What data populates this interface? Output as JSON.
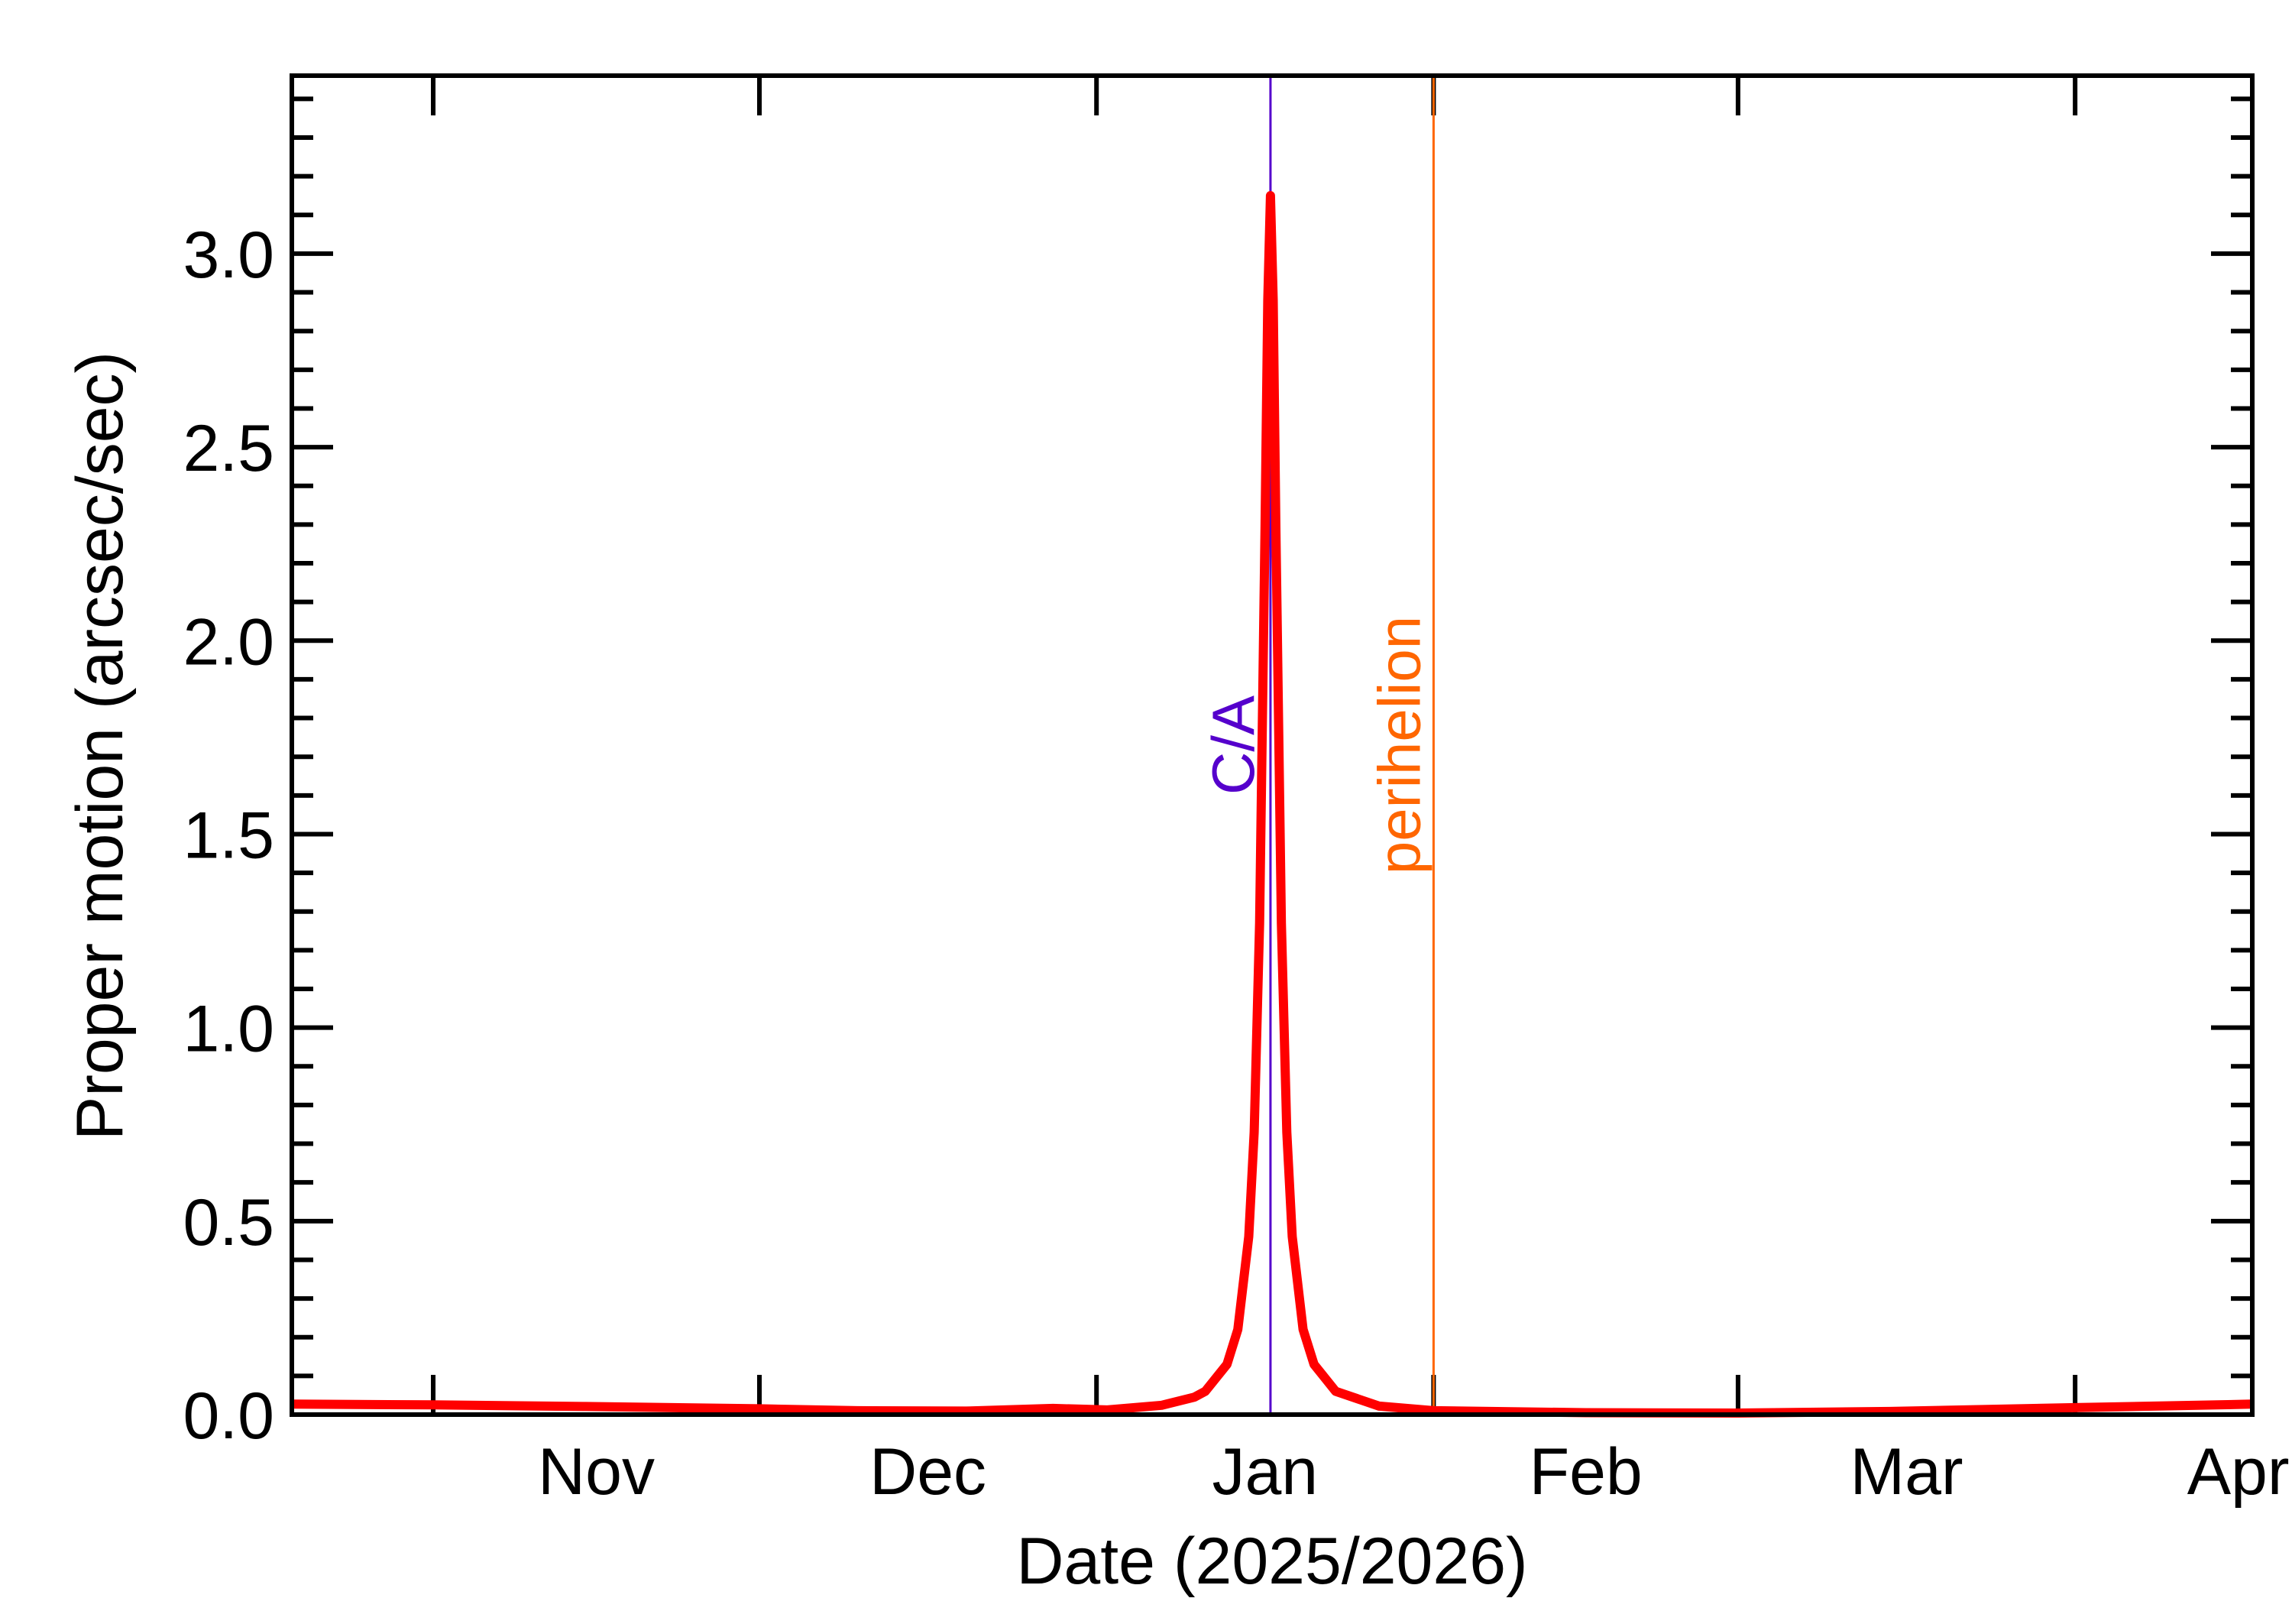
{
  "chart_data": {
    "type": "line",
    "title": "",
    "xlabel": "Date (2025/2026)",
    "ylabel": "Proper motion (arcsec/sec)",
    "xlim": [
      "2025-10-19T00:00",
      "2026-04-17T07:00"
    ],
    "ylim": [
      0,
      3.46
    ],
    "grid": false,
    "x_ticks": [
      {
        "date": "2025-11-01",
        "label": "Nov"
      },
      {
        "date": "2025-12-01",
        "label": "Dec"
      },
      {
        "date": "2026-01-01",
        "label": "Jan"
      },
      {
        "date": "2026-02-01",
        "label": "Feb"
      },
      {
        "date": "2026-03-01",
        "label": "Mar"
      },
      {
        "date": "2026-04-01",
        "label": "Apr"
      }
    ],
    "y_ticks": [
      {
        "value": 0.0,
        "label": "0.0"
      },
      {
        "value": 0.5,
        "label": "0.5"
      },
      {
        "value": 1.0,
        "label": "1.0"
      },
      {
        "value": 1.5,
        "label": "1.5"
      },
      {
        "value": 2.0,
        "label": "2.0"
      },
      {
        "value": 2.5,
        "label": "2.5"
      },
      {
        "value": 3.0,
        "label": "3.0"
      }
    ],
    "series": [
      {
        "color": "#ff0000",
        "points": [
          [
            "2025-10-19T00:00",
            0.027
          ],
          [
            "2025-11-01T00:00",
            0.025
          ],
          [
            "2025-11-15T00:00",
            0.021
          ],
          [
            "2025-12-01T00:00",
            0.015
          ],
          [
            "2025-12-10T00:00",
            0.01
          ],
          [
            "2025-12-20T00:00",
            0.009
          ],
          [
            "2025-12-28T00:00",
            0.016
          ],
          [
            "2026-01-02T00:00",
            0.012
          ],
          [
            "2026-01-07T00:00",
            0.024
          ],
          [
            "2026-01-10T00:00",
            0.045
          ],
          [
            "2026-01-11T00:00",
            0.06
          ],
          [
            "2026-01-13T00:00",
            0.13
          ],
          [
            "2026-01-14T00:00",
            0.22
          ],
          [
            "2026-01-15T00:00",
            0.46
          ],
          [
            "2026-01-15T12:00",
            0.73
          ],
          [
            "2026-01-16T00:00",
            1.27
          ],
          [
            "2026-01-16T12:00",
            2.29
          ],
          [
            "2026-01-16T18:00",
            2.88
          ],
          [
            "2026-01-17T00:00",
            3.15
          ],
          [
            "2026-01-17T06:00",
            2.88
          ],
          [
            "2026-01-17T12:00",
            2.29
          ],
          [
            "2026-01-18T00:00",
            1.27
          ],
          [
            "2026-01-18T12:00",
            0.73
          ],
          [
            "2026-01-19T00:00",
            0.46
          ],
          [
            "2026-01-20T00:00",
            0.22
          ],
          [
            "2026-01-21T00:00",
            0.13
          ],
          [
            "2026-01-23T00:00",
            0.06
          ],
          [
            "2026-01-27T00:00",
            0.022
          ],
          [
            "2026-02-01T00:00",
            0.01
          ],
          [
            "2026-02-15T00:00",
            0.005
          ],
          [
            "2026-03-01T00:00",
            0.004
          ],
          [
            "2026-03-15T00:00",
            0.008
          ],
          [
            "2026-04-01T00:00",
            0.018
          ],
          [
            "2026-04-17T07:00",
            0.027
          ]
        ]
      }
    ],
    "annotations": [
      {
        "type": "vline",
        "date": "2026-01-17T00:00",
        "label": "C/A",
        "color": "#5500cc"
      },
      {
        "type": "vline",
        "date": "2026-02-01T00:00",
        "label": "perihelion",
        "color": "#ff6600"
      }
    ]
  }
}
